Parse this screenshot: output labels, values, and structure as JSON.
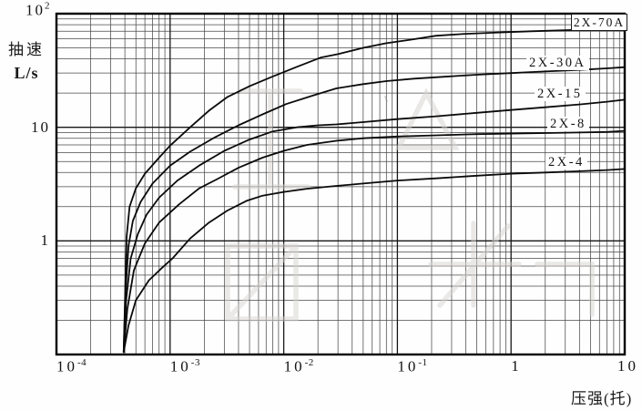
{
  "figure": {
    "y_axis_label": "抽速",
    "y_axis_unit": "L/s",
    "x_axis_label": "压强(托)"
  },
  "chart_data": {
    "type": "line",
    "title": "",
    "xlabel": "压强(托)",
    "ylabel": "抽速 L/s",
    "x_scale": "log",
    "y_scale": "log",
    "xlim": [
      0.0001,
      10
    ],
    "ylim": [
      0.1,
      100
    ],
    "grid": "log-log minor gridlines on",
    "legend_position": "inline-right-labels",
    "x_ticks": [
      {
        "mantissa": "10",
        "exponent": "-4",
        "value": 0.0001
      },
      {
        "mantissa": "10",
        "exponent": "-3",
        "value": 0.001
      },
      {
        "mantissa": "10",
        "exponent": "-2",
        "value": 0.01
      },
      {
        "mantissa": "10",
        "exponent": "-1",
        "value": 0.1
      },
      {
        "mantissa": "1",
        "exponent": "",
        "value": 1
      },
      {
        "mantissa": "10",
        "exponent": "",
        "value": 10
      }
    ],
    "y_ticks": [
      {
        "mantissa": "10",
        "exponent": "2",
        "value": 100
      },
      {
        "mantissa": "10",
        "exponent": "",
        "value": 10
      },
      {
        "mantissa": "1",
        "exponent": "",
        "value": 1
      }
    ],
    "series": [
      {
        "name": "2X-70A",
        "points": [
          [
            0.00039,
            0.105
          ],
          [
            0.000405,
            0.45
          ],
          [
            0.000415,
            1.1
          ],
          [
            0.00044,
            2.0
          ],
          [
            0.0005,
            2.9
          ],
          [
            0.0006,
            3.9
          ],
          [
            0.0008,
            5.4
          ],
          [
            0.001,
            6.9
          ],
          [
            0.0015,
            10
          ],
          [
            0.0022,
            14
          ],
          [
            0.0032,
            18.5
          ],
          [
            0.005,
            23
          ],
          [
            0.008,
            28
          ],
          [
            0.013,
            34
          ],
          [
            0.021,
            41
          ],
          [
            0.03,
            44
          ],
          [
            0.05,
            50
          ],
          [
            0.08,
            55
          ],
          [
            0.13,
            59
          ],
          [
            0.22,
            64
          ],
          [
            0.4,
            66.5
          ],
          [
            0.7,
            68
          ],
          [
            1.5,
            70
          ],
          [
            3,
            71.5
          ],
          [
            6,
            73
          ],
          [
            10,
            74
          ]
        ]
      },
      {
        "name": "2X-30A",
        "points": [
          [
            0.00039,
            0.105
          ],
          [
            0.000405,
            0.35
          ],
          [
            0.00043,
            0.9
          ],
          [
            0.00047,
            1.5
          ],
          [
            0.00055,
            2.2
          ],
          [
            0.0007,
            3.2
          ],
          [
            0.001,
            4.6
          ],
          [
            0.0015,
            6.1
          ],
          [
            0.0025,
            8.2
          ],
          [
            0.004,
            10.4
          ],
          [
            0.0065,
            13
          ],
          [
            0.0105,
            16
          ],
          [
            0.018,
            19
          ],
          [
            0.029,
            22
          ],
          [
            0.05,
            24
          ],
          [
            0.08,
            25.5
          ],
          [
            0.14,
            26.8
          ],
          [
            0.25,
            27.8
          ],
          [
            0.5,
            29
          ],
          [
            1,
            30
          ],
          [
            2,
            31
          ],
          [
            4,
            32
          ],
          [
            7,
            33
          ],
          [
            10,
            33.8
          ]
        ]
      },
      {
        "name": "2X-15",
        "points": [
          [
            0.00039,
            0.105
          ],
          [
            0.00041,
            0.3
          ],
          [
            0.00045,
            0.7
          ],
          [
            0.00052,
            1.15
          ],
          [
            0.00062,
            1.7
          ],
          [
            0.0008,
            2.4
          ],
          [
            0.00116,
            3.4
          ],
          [
            0.0018,
            4.6
          ],
          [
            0.003,
            6.2
          ],
          [
            0.005,
            7.8
          ],
          [
            0.008,
            9.2
          ],
          [
            0.013,
            10
          ],
          [
            0.02,
            10.4
          ],
          [
            0.029,
            10.6
          ],
          [
            0.05,
            11.1
          ],
          [
            0.1,
            11.8
          ],
          [
            0.22,
            12.5
          ],
          [
            0.5,
            13.4
          ],
          [
            1,
            14.2
          ],
          [
            2,
            15
          ],
          [
            4,
            15.9
          ],
          [
            7,
            16.8
          ],
          [
            10,
            17.5
          ]
        ]
      },
      {
        "name": "2X-8",
        "points": [
          [
            0.00039,
            0.105
          ],
          [
            0.00042,
            0.25
          ],
          [
            0.00048,
            0.55
          ],
          [
            0.0006,
            0.95
          ],
          [
            0.0008,
            1.45
          ],
          [
            0.0012,
            2.1
          ],
          [
            0.0018,
            2.9
          ],
          [
            0.0026,
            3.5
          ],
          [
            0.004,
            4.4
          ],
          [
            0.0065,
            5.4
          ],
          [
            0.01,
            6.2
          ],
          [
            0.016,
            7.0
          ],
          [
            0.029,
            7.6
          ],
          [
            0.05,
            8.0
          ],
          [
            0.1,
            8.3
          ],
          [
            0.22,
            8.5
          ],
          [
            0.5,
            8.7
          ],
          [
            1,
            8.8
          ],
          [
            2,
            8.9
          ],
          [
            4,
            9.0
          ],
          [
            7,
            9.1
          ],
          [
            10,
            9.3
          ]
        ]
      },
      {
        "name": "2X-4",
        "points": [
          [
            0.00039,
            0.105
          ],
          [
            0.00043,
            0.18
          ],
          [
            0.0005,
            0.3
          ],
          [
            0.00065,
            0.45
          ],
          [
            0.00085,
            0.58
          ],
          [
            0.00105,
            0.7
          ],
          [
            0.0015,
            1.05
          ],
          [
            0.0022,
            1.45
          ],
          [
            0.0032,
            1.85
          ],
          [
            0.0047,
            2.25
          ],
          [
            0.0065,
            2.5
          ],
          [
            0.01,
            2.7
          ],
          [
            0.016,
            2.88
          ],
          [
            0.029,
            3.05
          ],
          [
            0.05,
            3.2
          ],
          [
            0.1,
            3.4
          ],
          [
            0.22,
            3.55
          ],
          [
            0.5,
            3.75
          ],
          [
            1,
            3.9
          ],
          [
            2,
            4.0
          ],
          [
            4,
            4.1
          ],
          [
            7,
            4.2
          ],
          [
            10,
            4.3
          ]
        ]
      }
    ]
  }
}
